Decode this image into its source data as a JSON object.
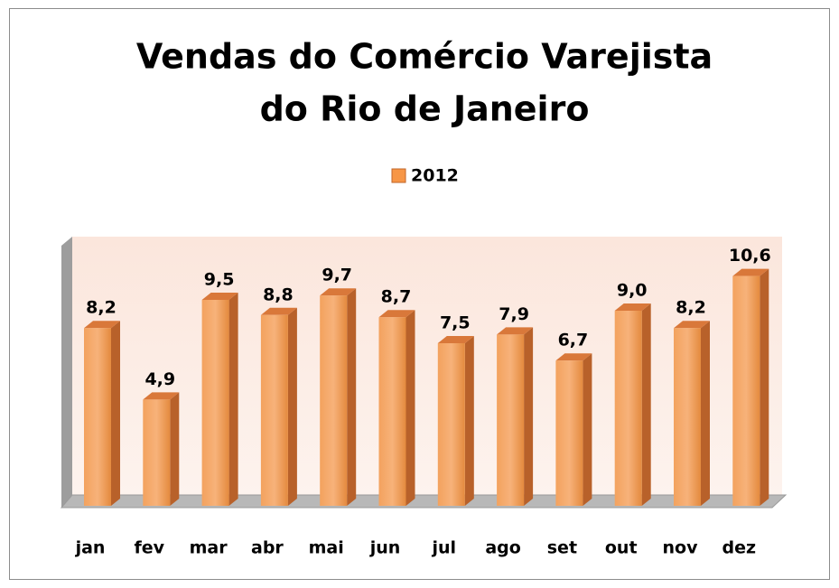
{
  "chart_data": {
    "type": "bar3d",
    "title": [
      "Vendas do Comércio Varejista",
      "do Rio de Janeiro"
    ],
    "categories": [
      "jan",
      "fev",
      "mar",
      "abr",
      "mai",
      "jun",
      "jul",
      "ago",
      "set",
      "out",
      "nov",
      "dez"
    ],
    "series": [
      {
        "name": "2012",
        "color": "#f79646",
        "values": [
          8.2,
          4.9,
          9.5,
          8.8,
          9.7,
          8.7,
          7.5,
          7.9,
          6.7,
          9.0,
          8.2,
          10.6
        ],
        "value_labels": [
          "8,2",
          "4,9",
          "9,5",
          "8,8",
          "9,7",
          "8,7",
          "7,5",
          "7,9",
          "6,7",
          "9,0",
          "8,2",
          "10,6"
        ]
      }
    ],
    "legend": "top"
  }
}
